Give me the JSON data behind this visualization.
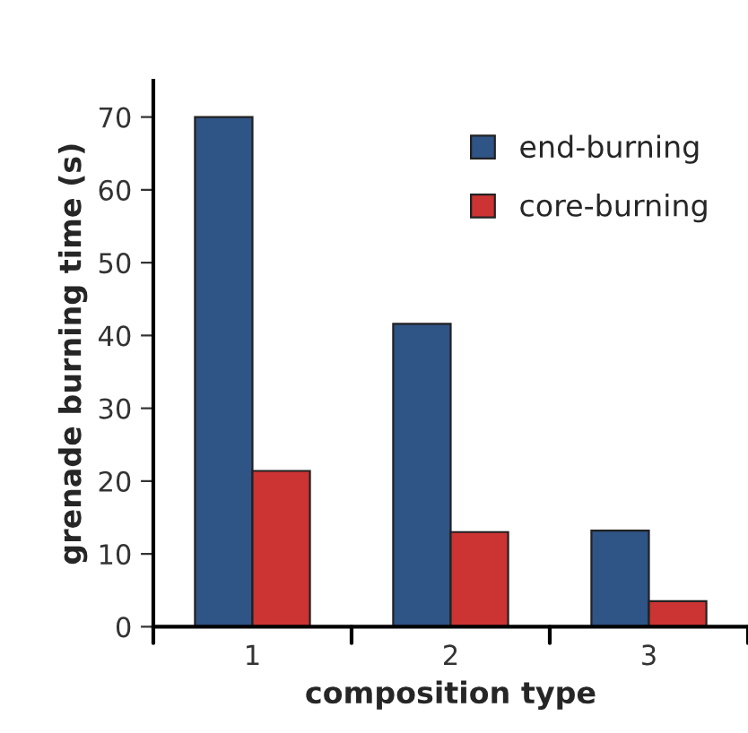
{
  "chart_data": {
    "type": "bar",
    "xlabel": "composition type",
    "ylabel": "grenade burning time (s)",
    "categories": [
      "1",
      "2",
      "3"
    ],
    "series": [
      {
        "name": "end-burning",
        "color": "#2f5486",
        "values": [
          70,
          41.6,
          13.2
        ]
      },
      {
        "name": "core-burning",
        "color": "#cc3333",
        "values": [
          21.4,
          13.0,
          3.5
        ]
      }
    ],
    "ylim": [
      0,
      75
    ],
    "yticks": [
      0,
      10,
      20,
      30,
      40,
      50,
      60,
      70
    ],
    "grid": false,
    "legend": "top right"
  }
}
